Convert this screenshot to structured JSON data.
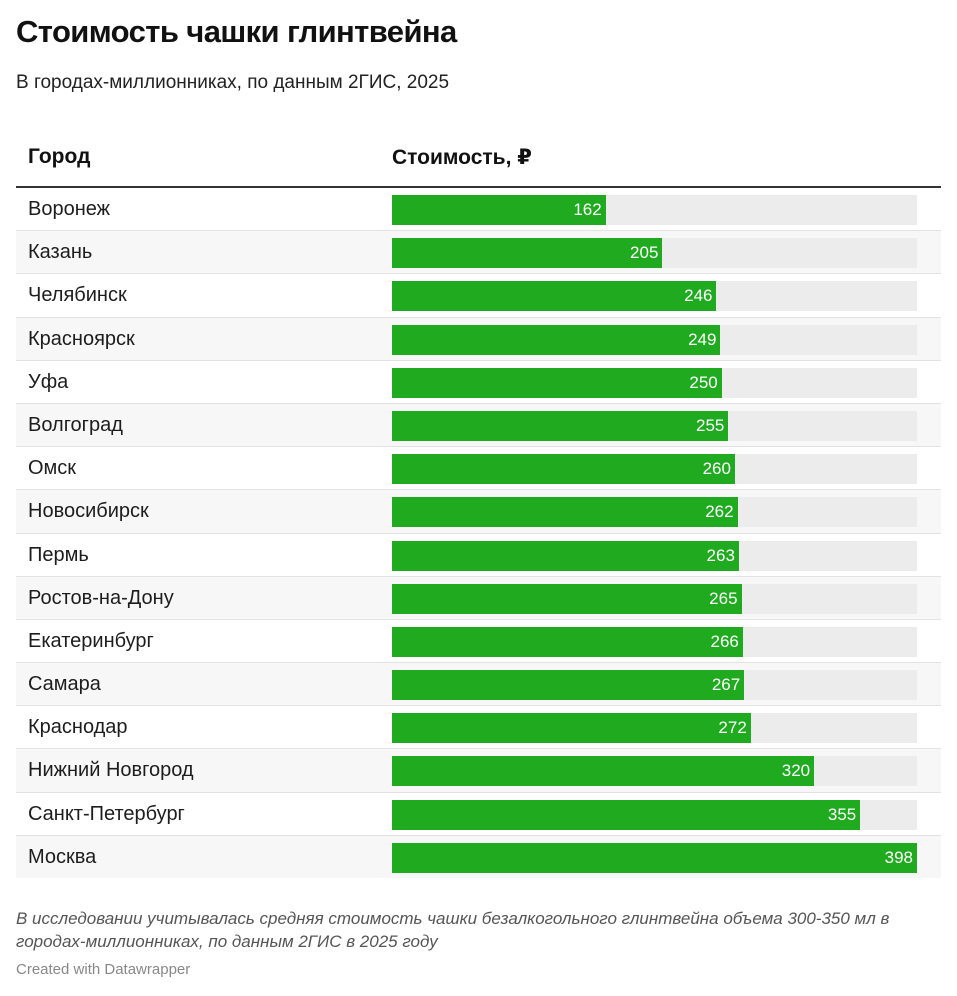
{
  "title": "Стоимость чашки глинтвейна",
  "subtitle": "В городах-миллионниках, по данным 2ГИС, 2025",
  "columns": {
    "city": "Город",
    "cost": "Стоимость, ₽"
  },
  "note": "В исследовании учитывалась средняя стоимость чашки безалкогольного глинтвейна объема 300-350 мл в городах-миллионниках, по данным 2ГИС в 2025 году",
  "credit": "Created with Datawrapper",
  "colors": {
    "bar": "#1faa1f",
    "track": "#ececec"
  },
  "chart_data": {
    "type": "bar",
    "title": "Стоимость чашки глинтвейна",
    "subtitle": "В городах-миллионниках, по данным 2ГИС, 2025",
    "xlabel": "Стоимость, ₽",
    "ylabel": "Город",
    "xlim": [
      0,
      398
    ],
    "categories": [
      "Воронеж",
      "Казань",
      "Челябинск",
      "Красноярск",
      "Уфа",
      "Волгоград",
      "Омск",
      "Новосибирск",
      "Пермь",
      "Ростов-на-Дону",
      "Екатеринбург",
      "Самара",
      "Краснодар",
      "Нижний Новгород",
      "Санкт-Петербург",
      "Москва"
    ],
    "values": [
      162,
      205,
      246,
      249,
      250,
      255,
      260,
      262,
      263,
      265,
      266,
      267,
      272,
      320,
      355,
      398
    ]
  }
}
